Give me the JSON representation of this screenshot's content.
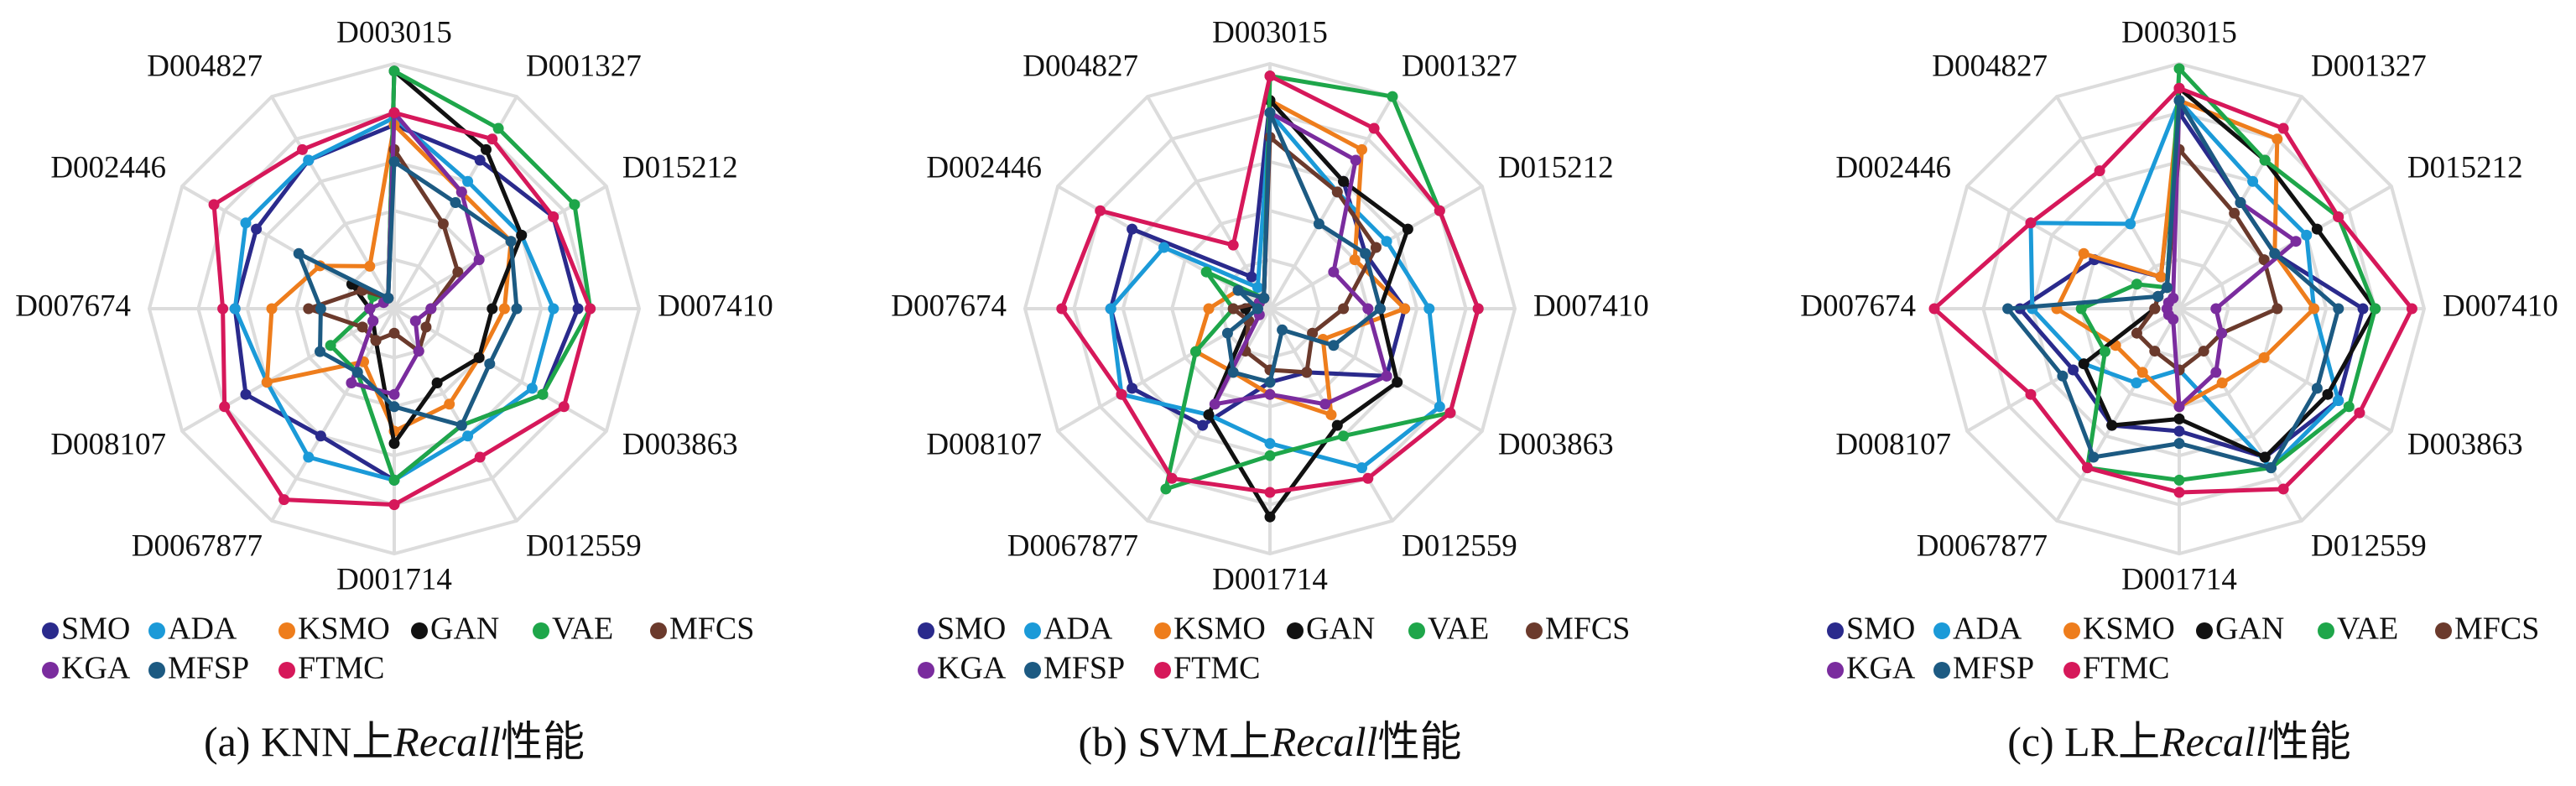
{
  "chart_data": [
    {
      "type": "radar",
      "caption": [
        {
          "text": "(a) KNN上"
        },
        {
          "text": "Recall",
          "italic": true
        },
        {
          "text": "性能"
        }
      ],
      "axes": [
        "D003015",
        "D001327",
        "D015212",
        "D007410",
        "D003863",
        "D012559",
        "D001714",
        "D0067877",
        "D008107",
        "D007674",
        "D002446",
        "D004827"
      ],
      "rlim": [
        0,
        1
      ],
      "rticks": [
        0.2,
        0.4,
        0.6,
        0.8,
        1.0
      ],
      "grid": true,
      "series": [
        {
          "name": "SMO",
          "color": "#2a2a8c",
          "values": [
            0.75,
            0.7,
            0.75,
            0.75,
            0.7,
            0.55,
            0.7,
            0.6,
            0.7,
            0.65,
            0.65,
            0.7
          ]
        },
        {
          "name": "ADA",
          "color": "#1b9ad8",
          "values": [
            0.78,
            0.6,
            0.6,
            0.65,
            0.65,
            0.6,
            0.7,
            0.7,
            0.6,
            0.65,
            0.7,
            0.7
          ]
        },
        {
          "name": "KSMO",
          "color": "#ee7d1c",
          "values": [
            0.75,
            0.55,
            0.55,
            0.45,
            0.4,
            0.45,
            0.5,
            0.25,
            0.6,
            0.5,
            0.35,
            0.2
          ]
        },
        {
          "name": "GAN",
          "color": "#111111",
          "values": [
            0.97,
            0.75,
            0.6,
            0.4,
            0.4,
            0.35,
            0.55,
            0.15,
            0.1,
            0.1,
            0.2,
            0.05
          ]
        },
        {
          "name": "VAE",
          "color": "#1ea64a",
          "values": [
            0.97,
            0.85,
            0.85,
            0.8,
            0.7,
            0.55,
            0.7,
            0.3,
            0.3,
            0.1,
            0.1,
            0.05
          ]
        },
        {
          "name": "MFCS",
          "color": "#6b3a2c",
          "values": [
            0.65,
            0.4,
            0.3,
            0.15,
            0.15,
            0.2,
            0.1,
            0.15,
            0.15,
            0.35,
            0.15,
            0.05
          ]
        },
        {
          "name": "KGA",
          "color": "#7a2c9e",
          "values": [
            0.8,
            0.55,
            0.4,
            0.15,
            0.1,
            0.2,
            0.35,
            0.35,
            0.1,
            0.1,
            0.05,
            0.05
          ]
        },
        {
          "name": "MFSP",
          "color": "#1c5a82",
          "values": [
            0.6,
            0.5,
            0.55,
            0.5,
            0.45,
            0.55,
            0.4,
            0.3,
            0.35,
            0.3,
            0.45,
            0.05
          ]
        },
        {
          "name": "FTMC",
          "color": "#d6185a",
          "values": [
            0.8,
            0.8,
            0.75,
            0.8,
            0.8,
            0.7,
            0.8,
            0.9,
            0.8,
            0.7,
            0.85,
            0.75
          ]
        }
      ]
    },
    {
      "type": "radar",
      "caption": [
        {
          "text": "(b) SVM上"
        },
        {
          "text": "Recall",
          "italic": true
        },
        {
          "text": "性能"
        }
      ],
      "axes": [
        "D003015",
        "D001327",
        "D015212",
        "D007410",
        "D003863",
        "D012559",
        "D001714",
        "D0067877",
        "D008107",
        "D007674",
        "D002446",
        "D004827"
      ],
      "rlim": [
        0,
        1
      ],
      "rticks": [
        0.2,
        0.4,
        0.6,
        0.8,
        1.0
      ],
      "grid": true,
      "series": [
        {
          "name": "SMO",
          "color": "#2a2a8c",
          "values": [
            0.85,
            0.6,
            0.45,
            0.55,
            0.55,
            0.3,
            0.3,
            0.55,
            0.65,
            0.65,
            0.65,
            0.15
          ]
        },
        {
          "name": "ADA",
          "color": "#1b9ad8",
          "values": [
            0.8,
            0.55,
            0.55,
            0.65,
            0.8,
            0.75,
            0.55,
            0.5,
            0.7,
            0.65,
            0.5,
            0.1
          ]
        },
        {
          "name": "KSMO",
          "color": "#ee7d1c",
          "values": [
            0.85,
            0.75,
            0.4,
            0.55,
            0.25,
            0.5,
            0.35,
            0.3,
            0.35,
            0.25,
            0.15,
            0.05
          ]
        },
        {
          "name": "GAN",
          "color": "#111111",
          "values": [
            0.85,
            0.6,
            0.65,
            0.45,
            0.6,
            0.55,
            0.85,
            0.5,
            0.1,
            0.1,
            0.05,
            0.05
          ]
        },
        {
          "name": "VAE",
          "color": "#1ea64a",
          "values": [
            0.95,
            1.0,
            0.8,
            0.85,
            0.85,
            0.6,
            0.6,
            0.85,
            0.35,
            0.15,
            0.3,
            0.05
          ]
        },
        {
          "name": "MFCS",
          "color": "#6b3a2c",
          "values": [
            0.7,
            0.55,
            0.5,
            0.3,
            0.2,
            0.3,
            0.25,
            0.2,
            0.1,
            0.15,
            0.05,
            0.05
          ]
        },
        {
          "name": "KGA",
          "color": "#7a2c9e",
          "values": [
            0.8,
            0.7,
            0.3,
            0.4,
            0.55,
            0.45,
            0.35,
            0.45,
            0.05,
            0.05,
            0.05,
            0.05
          ]
        },
        {
          "name": "MFSP",
          "color": "#1c5a82",
          "values": [
            0.8,
            0.4,
            0.45,
            0.45,
            0.3,
            0.1,
            0.3,
            0.3,
            0.2,
            0.05,
            0.15,
            0.05
          ]
        },
        {
          "name": "FTMC",
          "color": "#d6185a",
          "values": [
            0.95,
            0.85,
            0.8,
            0.85,
            0.85,
            0.8,
            0.75,
            0.8,
            0.7,
            0.85,
            0.8,
            0.3
          ]
        }
      ]
    },
    {
      "type": "radar",
      "caption": [
        {
          "text": "(c) LR上"
        },
        {
          "text": "Recall",
          "italic": true
        },
        {
          "text": "性能"
        }
      ],
      "axes": [
        "D003015",
        "D001327",
        "D015212",
        "D007410",
        "D003863",
        "D012559",
        "D001714",
        "D0067877",
        "D008107",
        "D007674",
        "D002446",
        "D004827"
      ],
      "rlim": [
        0,
        1
      ],
      "rticks": [
        0.2,
        0.4,
        0.6,
        0.8,
        1.0
      ],
      "grid": true,
      "series": [
        {
          "name": "SMO",
          "color": "#2a2a8c",
          "values": [
            0.8,
            0.5,
            0.45,
            0.75,
            0.75,
            0.7,
            0.5,
            0.55,
            0.5,
            0.65,
            0.4,
            0.15
          ]
        },
        {
          "name": "ADA",
          "color": "#1b9ad8",
          "values": [
            0.85,
            0.6,
            0.6,
            0.55,
            0.75,
            0.75,
            0.25,
            0.35,
            0.45,
            0.6,
            0.7,
            0.4
          ]
        },
        {
          "name": "KSMO",
          "color": "#ee7d1c",
          "values": [
            0.85,
            0.8,
            0.45,
            0.55,
            0.4,
            0.35,
            0.4,
            0.3,
            0.3,
            0.5,
            0.45,
            0.15
          ]
        },
        {
          "name": "GAN",
          "color": "#111111",
          "values": [
            0.9,
            0.7,
            0.65,
            0.8,
            0.7,
            0.7,
            0.45,
            0.55,
            0.45,
            0.1,
            0.1,
            0.1
          ]
        },
        {
          "name": "VAE",
          "color": "#1ea64a",
          "values": [
            0.98,
            0.7,
            0.75,
            0.8,
            0.8,
            0.75,
            0.7,
            0.75,
            0.35,
            0.4,
            0.2,
            0.1
          ]
        },
        {
          "name": "MFCS",
          "color": "#6b3a2c",
          "values": [
            0.65,
            0.45,
            0.4,
            0.4,
            0.2,
            0.2,
            0.25,
            0.2,
            0.2,
            0.1,
            0.1,
            0.1
          ]
        },
        {
          "name": "KGA",
          "color": "#7a2c9e",
          "values": [
            0.85,
            0.5,
            0.55,
            0.15,
            0.2,
            0.3,
            0.4,
            0.05,
            0.05,
            0.05,
            0.05,
            0.05
          ]
        },
        {
          "name": "MFSP",
          "color": "#1c5a82",
          "values": [
            0.85,
            0.5,
            0.45,
            0.65,
            0.65,
            0.75,
            0.55,
            0.7,
            0.55,
            0.7,
            0.1,
            0.1
          ]
        },
        {
          "name": "FTMC",
          "color": "#d6185a",
          "values": [
            0.9,
            0.85,
            0.75,
            0.95,
            0.85,
            0.85,
            0.75,
            0.75,
            0.7,
            1.0,
            0.7,
            0.65
          ]
        }
      ]
    }
  ]
}
